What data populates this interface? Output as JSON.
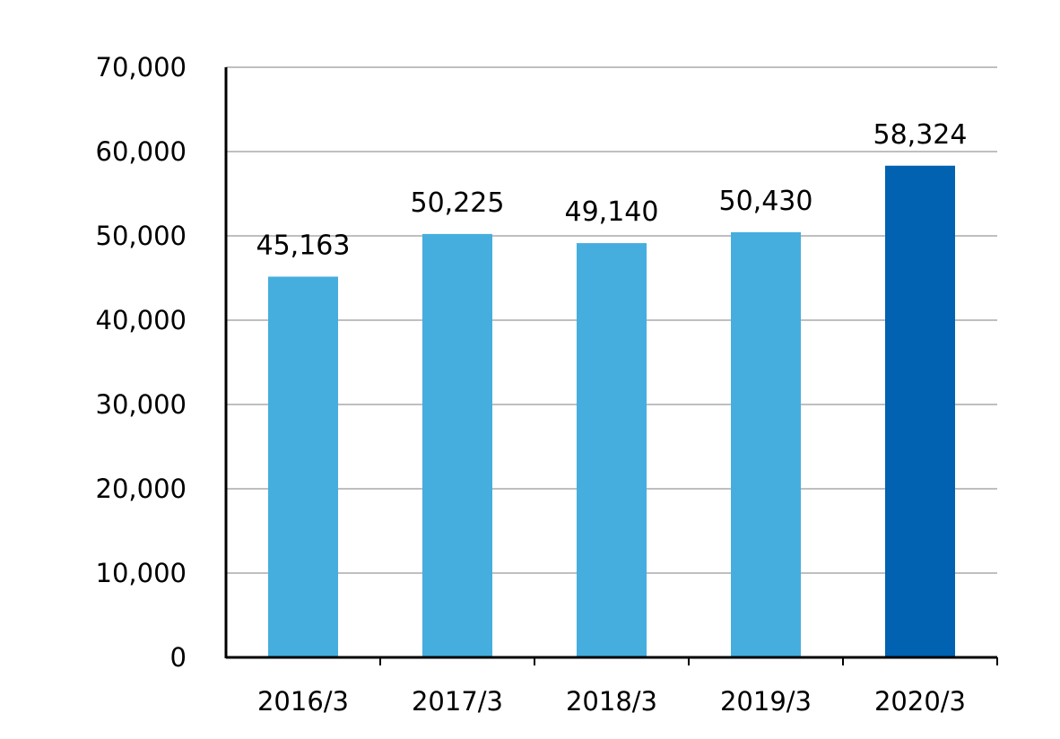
{
  "chart_data": {
    "type": "bar",
    "title": "",
    "xlabel": "",
    "ylabel": "",
    "categories": [
      "2016/3",
      "2017/3",
      "2018/3",
      "2019/3",
      "2020/3"
    ],
    "values": [
      45163,
      50225,
      49140,
      50430,
      58324
    ],
    "data_labels": [
      "45,163",
      "50,225",
      "49,140",
      "50,430",
      "58,324"
    ],
    "ylim": [
      0,
      70000
    ],
    "yticks": [
      0,
      10000,
      20000,
      30000,
      40000,
      50000,
      60000,
      70000
    ],
    "ytick_labels": [
      "0",
      "10,000",
      "20,000",
      "30,000",
      "40,000",
      "50,000",
      "60,000",
      "70,000"
    ],
    "grid": true,
    "colors": {
      "bar": "#45aede",
      "highlight_bar": "#0062b1",
      "grid": "#bfbfbf",
      "axis": "#000000"
    },
    "highlight_index": 4
  }
}
